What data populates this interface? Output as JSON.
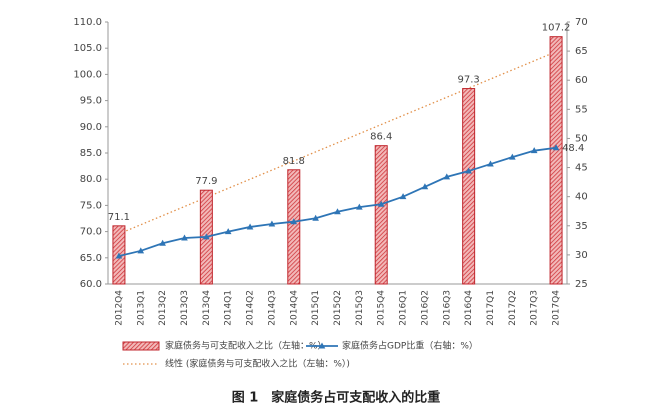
{
  "chart_data": {
    "type": "bar-line",
    "caption": "图 1　家庭债务占可支配收入的比重",
    "categories": [
      "2012Q4",
      "2013Q1",
      "2013Q2",
      "2013Q3",
      "2013Q4",
      "2014Q1",
      "2014Q2",
      "2014Q3",
      "2014Q4",
      "2015Q1",
      "2015Q2",
      "2015Q3",
      "2015Q4",
      "2016Q1",
      "2016Q2",
      "2016Q3",
      "2016Q4",
      "2017Q1",
      "2017Q2",
      "2017Q3",
      "2017Q4"
    ],
    "series": [
      {
        "name": "家庭债务与可支配收入之比（左轴：%）",
        "type": "bar",
        "color": "#c0262d",
        "values": [
          71.1,
          null,
          null,
          null,
          77.9,
          null,
          null,
          null,
          81.8,
          null,
          null,
          null,
          86.4,
          null,
          null,
          null,
          97.3,
          null,
          null,
          null,
          107.2
        ]
      },
      {
        "name": "家庭债务占GDP比重（右轴：%）",
        "type": "line",
        "axis": "y2",
        "color": "#2e75b6",
        "label": "last",
        "values": [
          29.8,
          30.7,
          32.0,
          32.9,
          33.1,
          34.0,
          34.8,
          35.3,
          35.7,
          36.3,
          37.4,
          38.2,
          38.7,
          40.0,
          41.7,
          43.4,
          44.4,
          45.6,
          46.8,
          47.9,
          48.4
        ]
      }
    ],
    "trendline": {
      "name": "线性 (家庭债务与可支配收入之比（左轴：%）)",
      "of": 0,
      "color": "#e2904a"
    },
    "ylim": [
      60,
      110
    ],
    "yticks": [
      {
        "value": 60,
        "label": "60.0"
      },
      {
        "value": 65,
        "label": "65.0"
      },
      {
        "value": 70,
        "label": "70.0"
      },
      {
        "value": 75,
        "label": "75.0"
      },
      {
        "value": 80,
        "label": "80.0"
      },
      {
        "value": 85,
        "label": "85.0"
      },
      {
        "value": 90,
        "label": "90.0"
      },
      {
        "value": 95,
        "label": "95.0"
      },
      {
        "value": 100,
        "label": "100.0"
      },
      {
        "value": 105,
        "label": "105.0"
      },
      {
        "value": 110,
        "label": "110.0"
      }
    ],
    "y2lim": [
      25,
      70
    ],
    "y2ticks": [
      25,
      30,
      35,
      40,
      45,
      50,
      55,
      60,
      65,
      70
    ]
  }
}
